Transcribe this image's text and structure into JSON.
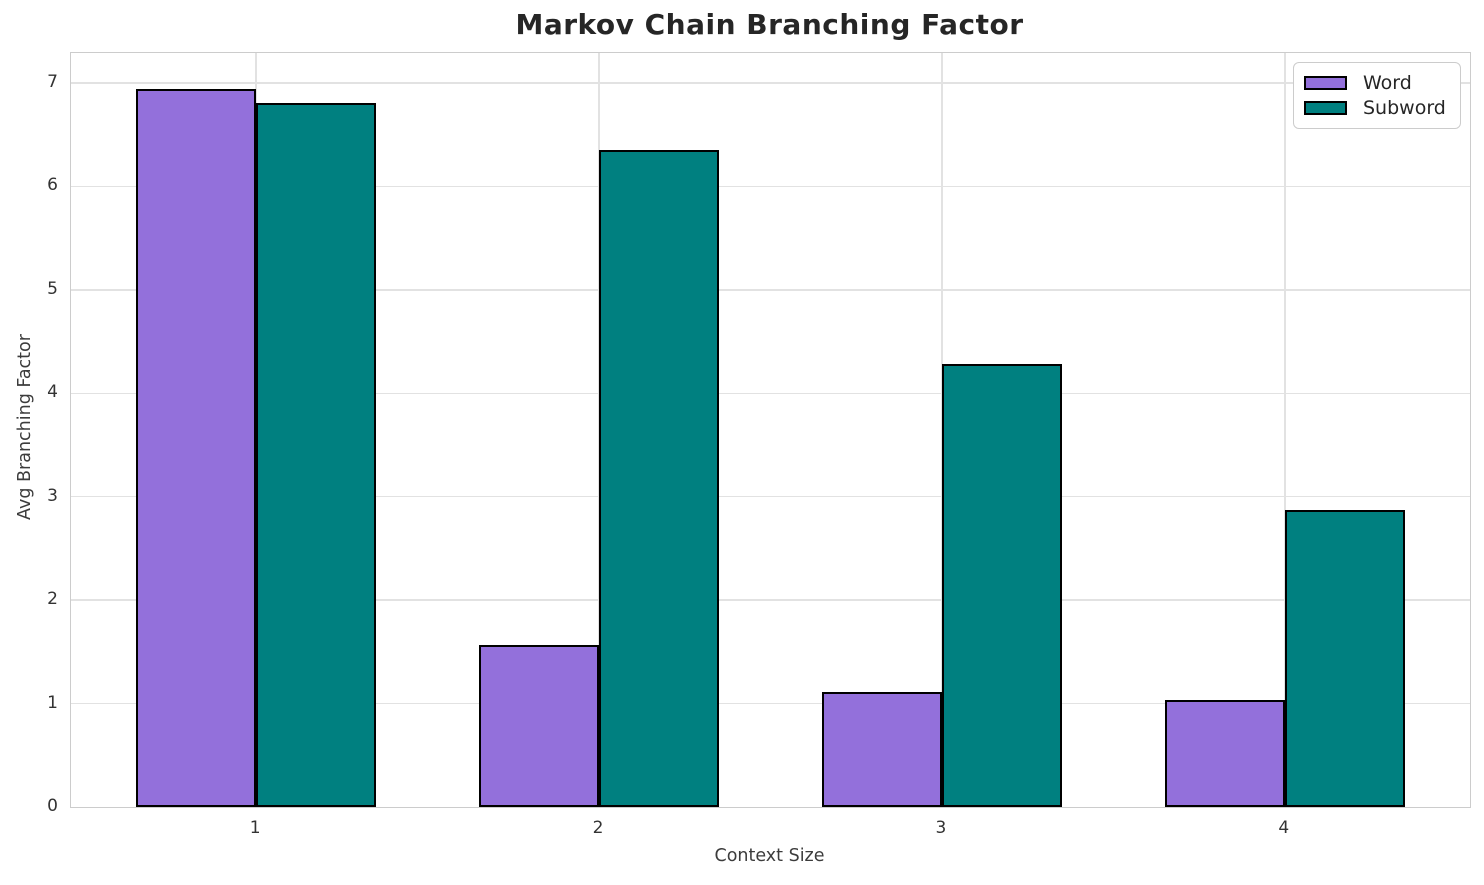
{
  "title": "Markov Chain Branching Factor",
  "chart_data": {
    "type": "bar",
    "title": "Markov Chain Branching Factor",
    "xlabel": "Context Size",
    "ylabel": "Avg Branching Factor",
    "categories": [
      "1",
      "2",
      "3",
      "4"
    ],
    "series": [
      {
        "name": "Word",
        "color": "#9370DB",
        "values": [
          6.94,
          1.57,
          1.11,
          1.03
        ]
      },
      {
        "name": "Subword",
        "color": "#008080",
        "values": [
          6.81,
          6.35,
          4.28,
          2.87
        ]
      }
    ],
    "bar_width": 0.35,
    "bar_edge_color": "#000000",
    "xlim": [
      0.46,
      4.54
    ],
    "ylim": [
      0,
      7.29
    ],
    "yticks": [
      "0",
      "1",
      "2",
      "3",
      "4",
      "5",
      "6",
      "7"
    ],
    "xticks": [
      "1",
      "2",
      "3",
      "4"
    ],
    "grid": true,
    "grid_color": "#E2E2E2",
    "background_color": "#FFFFFF",
    "legend": {
      "position": "upper right",
      "labels": [
        "Word",
        "Subword"
      ]
    }
  }
}
